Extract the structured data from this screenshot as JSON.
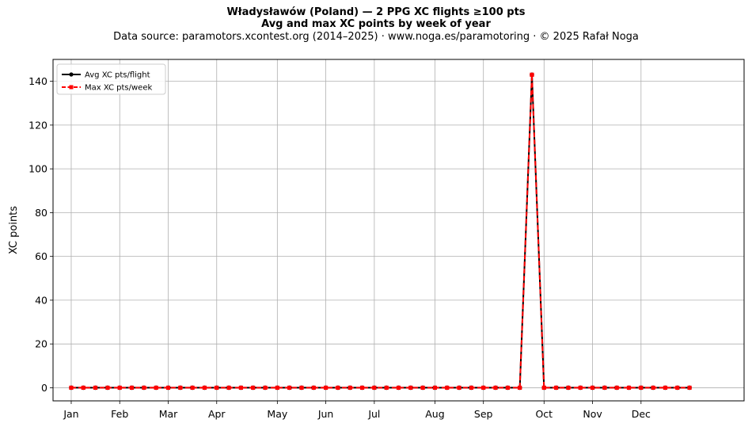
{
  "header": {
    "title": "Władysławów (Poland)  —  2 PPG XC flights ≥100 pts",
    "subtitle": "Avg and max XC points by week of year",
    "source": "Data source: paramotors.xcontest.org (2014–2025)  ·  www.noga.es/paramotoring  ·  © 2025 Rafał Noga"
  },
  "chart_data": {
    "type": "line",
    "title": "Władysławów (Poland)  —  2 PPG XC flights ≥100 pts",
    "subtitle": "Avg and max XC points by week of year",
    "xlabel": "",
    "ylabel": "XC points",
    "x_unit": "week of year",
    "xlim": [
      -1.5,
      55.5
    ],
    "ylim": [
      -6,
      150
    ],
    "yticks": [
      0,
      20,
      40,
      60,
      80,
      100,
      120,
      140
    ],
    "xticks": [
      {
        "label": "Jan",
        "week": 0
      },
      {
        "label": "Feb",
        "week": 4
      },
      {
        "label": "Mar",
        "week": 8
      },
      {
        "label": "Apr",
        "week": 12
      },
      {
        "label": "May",
        "week": 17
      },
      {
        "label": "Jun",
        "week": 21
      },
      {
        "label": "Jul",
        "week": 25
      },
      {
        "label": "Aug",
        "week": 30
      },
      {
        "label": "Sep",
        "week": 34
      },
      {
        "label": "Oct",
        "week": 39
      },
      {
        "label": "Nov",
        "week": 43
      },
      {
        "label": "Dec",
        "week": 47
      }
    ],
    "grid": true,
    "legend": "top-left",
    "x": [
      0,
      1,
      2,
      3,
      4,
      5,
      6,
      7,
      8,
      9,
      10,
      11,
      12,
      13,
      14,
      15,
      16,
      17,
      18,
      19,
      20,
      21,
      22,
      23,
      24,
      25,
      26,
      27,
      28,
      29,
      30,
      31,
      32,
      33,
      34,
      35,
      36,
      37,
      38,
      39,
      40,
      41,
      42,
      43,
      44,
      45,
      46,
      47,
      48,
      49,
      50,
      51
    ],
    "series": [
      {
        "name": "Avg XC pts/flight",
        "color": "#000000",
        "style": "solid",
        "marker": "circle",
        "values": [
          0,
          0,
          0,
          0,
          0,
          0,
          0,
          0,
          0,
          0,
          0,
          0,
          0,
          0,
          0,
          0,
          0,
          0,
          0,
          0,
          0,
          0,
          0,
          0,
          0,
          0,
          0,
          0,
          0,
          0,
          0,
          0,
          0,
          0,
          0,
          0,
          0,
          0,
          143,
          0,
          0,
          0,
          0,
          0,
          0,
          0,
          0,
          0,
          0,
          0,
          0,
          0
        ]
      },
      {
        "name": "Max XC pts/week",
        "color": "#ff0000",
        "style": "dashed",
        "marker": "square",
        "values": [
          0,
          0,
          0,
          0,
          0,
          0,
          0,
          0,
          0,
          0,
          0,
          0,
          0,
          0,
          0,
          0,
          0,
          0,
          0,
          0,
          0,
          0,
          0,
          0,
          0,
          0,
          0,
          0,
          0,
          0,
          0,
          0,
          0,
          0,
          0,
          0,
          0,
          0,
          143,
          0,
          0,
          0,
          0,
          0,
          0,
          0,
          0,
          0,
          0,
          0,
          0,
          0
        ]
      }
    ]
  }
}
